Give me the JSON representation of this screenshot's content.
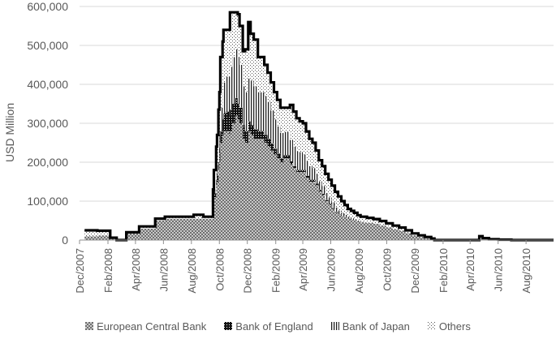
{
  "chart_data": {
    "type": "area",
    "ylabel": "USD Million",
    "xlabel": "",
    "ylim": [
      0,
      600000
    ],
    "yticks": [
      0,
      100000,
      200000,
      300000,
      400000,
      500000,
      600000
    ],
    "ytick_labels": [
      "0",
      "100,000",
      "200,000",
      "300,000",
      "400,000",
      "500,000",
      "600,000"
    ],
    "x_range": [
      "2007-12-01",
      "2010-09-30"
    ],
    "xtick_dates": [
      "2007-12-01",
      "2008-02-01",
      "2008-04-01",
      "2008-06-01",
      "2008-08-01",
      "2008-10-01",
      "2008-12-01",
      "2009-02-01",
      "2009-04-01",
      "2009-06-01",
      "2009-08-01",
      "2009-10-01",
      "2009-12-01",
      "2010-02-01",
      "2010-04-01",
      "2010-06-01",
      "2010-08-01"
    ],
    "xtick_labels": [
      "Dec/2007",
      "Feb/2008",
      "Apr/2008",
      "Jun/2008",
      "Aug/2008",
      "Oct/2008",
      "Dec/2008",
      "Feb/2009",
      "Apr/2009",
      "Jun/2009",
      "Aug/2009",
      "Oct/2009",
      "Dec/2009",
      "Feb/2010",
      "Apr/2010",
      "Jun/2010",
      "Aug/2010"
    ],
    "grid": "horizontal",
    "legend_position": "bottom",
    "stacked": true,
    "dates": [
      "2007-12-12",
      "2007-12-19",
      "2008-01-09",
      "2008-01-22",
      "2008-01-30",
      "2008-02-06",
      "2008-02-20",
      "2008-03-05",
      "2008-03-12",
      "2008-03-26",
      "2008-04-09",
      "2008-04-30",
      "2008-05-14",
      "2008-06-04",
      "2008-07-02",
      "2008-07-30",
      "2008-08-06",
      "2008-08-27",
      "2008-09-10",
      "2008-09-17",
      "2008-09-19",
      "2008-09-24",
      "2008-09-26",
      "2008-09-29",
      "2008-10-01",
      "2008-10-03",
      "2008-10-08",
      "2008-10-10",
      "2008-10-15",
      "2008-10-22",
      "2008-10-24",
      "2008-10-29",
      "2008-11-05",
      "2008-11-10",
      "2008-11-14",
      "2008-11-21",
      "2008-11-26",
      "2008-12-03",
      "2008-12-08",
      "2008-12-15",
      "2008-12-24",
      "2009-01-07",
      "2009-01-14",
      "2009-01-21",
      "2009-01-28",
      "2009-02-04",
      "2009-02-11",
      "2009-02-18",
      "2009-03-04",
      "2009-03-11",
      "2009-03-18",
      "2009-03-25",
      "2009-04-01",
      "2009-04-08",
      "2009-04-15",
      "2009-04-22",
      "2009-04-29",
      "2009-05-06",
      "2009-05-13",
      "2009-05-20",
      "2009-05-27",
      "2009-06-03",
      "2009-06-10",
      "2009-06-17",
      "2009-06-24",
      "2009-07-01",
      "2009-07-08",
      "2009-07-15",
      "2009-07-22",
      "2009-07-29",
      "2009-08-05",
      "2009-08-12",
      "2009-08-19",
      "2009-09-02",
      "2009-09-16",
      "2009-09-30",
      "2009-10-14",
      "2009-10-28",
      "2009-11-11",
      "2009-11-25",
      "2009-12-09",
      "2009-12-23",
      "2010-01-06",
      "2010-01-13",
      "2010-02-03",
      "2010-03-03",
      "2010-03-31",
      "2010-04-14",
      "2010-04-21",
      "2010-04-28",
      "2010-05-05",
      "2010-05-12",
      "2010-05-19",
      "2010-06-02",
      "2010-06-30",
      "2010-07-28",
      "2010-08-25",
      "2010-09-22"
    ],
    "series": [
      {
        "name": "European Central Bank",
        "pattern": "checker",
        "values": [
          10000,
          10000,
          12000,
          12000,
          12000,
          3000,
          0,
          0,
          20000,
          20000,
          30000,
          30000,
          50000,
          55000,
          55000,
          55000,
          55000,
          55000,
          55000,
          90000,
          110000,
          140000,
          150000,
          180000,
          200000,
          250000,
          270000,
          280000,
          280000,
          270000,
          280000,
          300000,
          320000,
          310000,
          300000,
          260000,
          250000,
          280000,
          270000,
          260000,
          260000,
          250000,
          240000,
          230000,
          220000,
          210000,
          200000,
          210000,
          195000,
          185000,
          175000,
          175000,
          175000,
          160000,
          150000,
          150000,
          140000,
          125000,
          115000,
          100000,
          90000,
          80000,
          70000,
          65000,
          60000,
          58000,
          55000,
          52000,
          50000,
          48000,
          46000,
          45000,
          44000,
          42000,
          38000,
          33000,
          28000,
          24000,
          18000,
          12000,
          8000,
          5000,
          1000,
          0,
          0,
          0,
          0,
          0,
          0,
          0,
          0,
          0,
          0,
          0,
          0,
          0,
          0,
          0
        ]
      },
      {
        "name": "Bank of England",
        "pattern": "dense",
        "values": [
          0,
          0,
          0,
          0,
          0,
          0,
          0,
          0,
          0,
          0,
          0,
          0,
          0,
          0,
          0,
          0,
          0,
          0,
          0,
          5000,
          10000,
          15000,
          15000,
          20000,
          25000,
          30000,
          40000,
          45000,
          50000,
          50000,
          55000,
          50000,
          45000,
          40000,
          40000,
          35000,
          30000,
          25000,
          25000,
          25000,
          20000,
          20000,
          20000,
          18000,
          15000,
          12000,
          10000,
          8000,
          7000,
          5000,
          5000,
          5000,
          5000,
          5000,
          5000,
          5000,
          5000,
          4000,
          4000,
          3000,
          3000,
          2000,
          2000,
          1000,
          1000,
          1000,
          0,
          0,
          0,
          0,
          0,
          0,
          0,
          0,
          0,
          0,
          0,
          0,
          0,
          0,
          0,
          0,
          0,
          0,
          0,
          0,
          0,
          0,
          0,
          0,
          0,
          0,
          0,
          0,
          0,
          0,
          0,
          0
        ]
      },
      {
        "name": "Bank of Japan",
        "pattern": "vlines",
        "values": [
          0,
          0,
          0,
          0,
          0,
          0,
          0,
          0,
          0,
          0,
          0,
          0,
          0,
          0,
          0,
          0,
          0,
          0,
          0,
          5000,
          10000,
          15000,
          25000,
          35000,
          45000,
          60000,
          70000,
          80000,
          90000,
          100000,
          110000,
          120000,
          125000,
          120000,
          110000,
          100000,
          100000,
          110000,
          115000,
          110000,
          100000,
          100000,
          95000,
          85000,
          75000,
          70000,
          65000,
          60000,
          55000,
          50000,
          48000,
          46000,
          40000,
          38000,
          35000,
          30000,
          25000,
          22000,
          20000,
          18000,
          17000,
          15000,
          12000,
          10000,
          8000,
          6000,
          5000,
          4000,
          3000,
          2000,
          1000,
          0,
          0,
          0,
          0,
          0,
          0,
          0,
          0,
          0,
          0,
          0,
          0,
          0,
          0,
          0,
          0,
          0,
          0,
          0,
          0,
          0,
          0,
          0,
          0,
          0,
          0,
          0
        ]
      },
      {
        "name": "Others",
        "pattern": "dots",
        "values": [
          15000,
          15000,
          12000,
          12000,
          12000,
          3000,
          0,
          0,
          0,
          0,
          5000,
          5000,
          5000,
          5000,
          5000,
          5000,
          10000,
          5000,
          5000,
          30000,
          50000,
          70000,
          80000,
          100000,
          110000,
          130000,
          130000,
          135000,
          120000,
          120000,
          140000,
          115000,
          95000,
          110000,
          100000,
          90000,
          110000,
          145000,
          120000,
          120000,
          90000,
          80000,
          75000,
          72000,
          70000,
          68000,
          65000,
          62000,
          90000,
          90000,
          85000,
          79000,
          80000,
          76000,
          70000,
          65000,
          60000,
          54000,
          51000,
          49000,
          45000,
          43000,
          40000,
          36000,
          31000,
          25000,
          20000,
          19000,
          17000,
          14000,
          13000,
          15000,
          13000,
          12000,
          11000,
          10000,
          9000,
          8000,
          7000,
          5000,
          4000,
          3000,
          3000,
          0,
          0,
          0,
          0,
          0,
          10000,
          5000,
          5000,
          2000,
          2000,
          1000,
          0,
          0,
          0,
          0
        ]
      }
    ]
  },
  "colors": {
    "text": "#595959",
    "grid": "#d9d9d9",
    "ink": "#000000",
    "fill_gray": "#8c8c8c"
  }
}
